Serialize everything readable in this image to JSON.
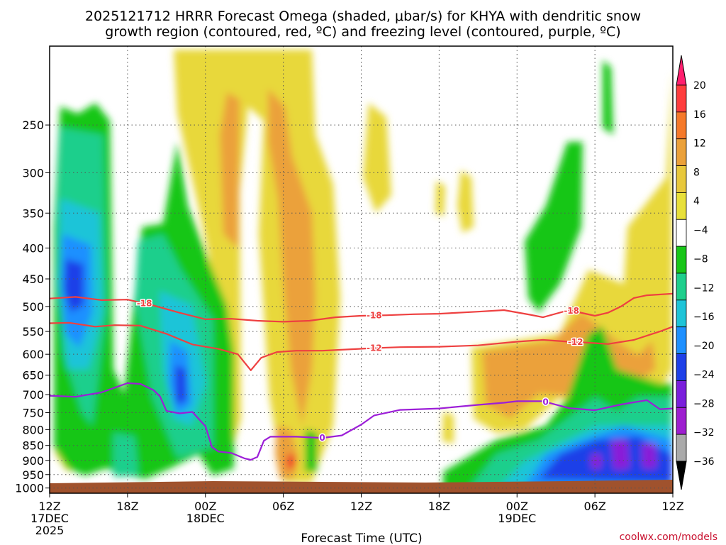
{
  "chart_data": {
    "type": "heatmap",
    "title_line1": "2025121712 HRRR Forecast Omega (shaded, μbar/s) for KHYA with dendritic snow",
    "title_line2": "growth region (contoured, red, ºC) and freezing level (contoured, purple, ºC)",
    "xlabel": "Forecast Time (UTC)",
    "credit": "coolwx.com/models",
    "x_range_hours": [
      0,
      48
    ],
    "y_range_mb": [
      1020,
      185
    ],
    "x_ticks": [
      {
        "hour": 0,
        "lines": [
          "12Z",
          "17DEC",
          "2025"
        ]
      },
      {
        "hour": 6,
        "lines": [
          "18Z"
        ]
      },
      {
        "hour": 12,
        "lines": [
          "00Z",
          "18DEC"
        ]
      },
      {
        "hour": 18,
        "lines": [
          "06Z"
        ]
      },
      {
        "hour": 24,
        "lines": [
          "12Z"
        ]
      },
      {
        "hour": 30,
        "lines": [
          "18Z"
        ]
      },
      {
        "hour": 36,
        "lines": [
          "00Z",
          "19DEC"
        ]
      },
      {
        "hour": 42,
        "lines": [
          "06Z"
        ]
      },
      {
        "hour": 48,
        "lines": [
          "12Z"
        ]
      }
    ],
    "y_ticks": [
      250,
      300,
      350,
      400,
      450,
      500,
      550,
      600,
      650,
      700,
      750,
      800,
      850,
      900,
      950,
      1000
    ],
    "colorbar": {
      "labels": [
        "20",
        "16",
        "12",
        "8",
        "4",
        "−4",
        "−8",
        "−12",
        "−16",
        "−20",
        "−24",
        "−28",
        "−32",
        "−36"
      ],
      "colors": [
        "#ff1f6e",
        "#ff3d3d",
        "#f5792a",
        "#eba13a",
        "#e8c83c",
        "#e8e03a",
        "#ffffff",
        "#18c618",
        "#1ecf8c",
        "#1ec4d8",
        "#1e90ff",
        "#1e40e8",
        "#7a1edc",
        "#9e1ed0",
        "#aaaaaa",
        "#000000"
      ]
    },
    "contours": [
      {
        "name": "-18",
        "color": "#ee4040",
        "points": [
          [
            0,
            485
          ],
          [
            2,
            482
          ],
          [
            4,
            488
          ],
          [
            6,
            487
          ],
          [
            8,
            498
          ],
          [
            10,
            512
          ],
          [
            12,
            525
          ],
          [
            14,
            524
          ],
          [
            16,
            528
          ],
          [
            18,
            530
          ],
          [
            20,
            528
          ],
          [
            22,
            521
          ],
          [
            24,
            518
          ],
          [
            26,
            517
          ],
          [
            28,
            515
          ],
          [
            30,
            514
          ],
          [
            33,
            510
          ],
          [
            35,
            507
          ],
          [
            37,
            516
          ],
          [
            38,
            521
          ],
          [
            40,
            507
          ],
          [
            42,
            518
          ],
          [
            43,
            512
          ],
          [
            44,
            500
          ],
          [
            45,
            484
          ],
          [
            46,
            479
          ],
          [
            48,
            476
          ]
        ],
        "labels": [
          {
            "hour": 7.3,
            "text": "-18"
          },
          {
            "hour": 25,
            "text": "-18"
          },
          {
            "hour": 40.2,
            "text": "-18"
          }
        ]
      },
      {
        "name": "-12",
        "color": "#ee4040",
        "points": [
          [
            0,
            533
          ],
          [
            1.5,
            532
          ],
          [
            3.5,
            540
          ],
          [
            5,
            537
          ],
          [
            7,
            538
          ],
          [
            9,
            555
          ],
          [
            11,
            578
          ],
          [
            13,
            588
          ],
          [
            14.5,
            600
          ],
          [
            15.5,
            638
          ],
          [
            16.3,
            608
          ],
          [
            17.5,
            595
          ],
          [
            19,
            592
          ],
          [
            21,
            592
          ],
          [
            23,
            589
          ],
          [
            25,
            586
          ],
          [
            27,
            584
          ],
          [
            30,
            583
          ],
          [
            33,
            580
          ],
          [
            36,
            572
          ],
          [
            38,
            568
          ],
          [
            40,
            572
          ],
          [
            42,
            575
          ],
          [
            43,
            577
          ],
          [
            45,
            568
          ],
          [
            47,
            550
          ],
          [
            48,
            540
          ]
        ],
        "labels": [
          {
            "hour": 25,
            "text": "-12"
          },
          {
            "hour": 40.5,
            "text": "-12"
          }
        ]
      },
      {
        "name": "0",
        "color": "#9c1ed8",
        "points": [
          [
            0,
            703
          ],
          [
            2,
            706
          ],
          [
            4,
            694
          ],
          [
            6,
            670
          ],
          [
            7,
            672
          ],
          [
            8,
            688
          ],
          [
            8.5,
            705
          ],
          [
            9,
            745
          ],
          [
            10,
            752
          ],
          [
            11,
            748
          ],
          [
            12,
            790
          ],
          [
            12.5,
            855
          ],
          [
            13,
            870
          ],
          [
            14,
            875
          ],
          [
            15,
            893
          ],
          [
            15.5,
            898
          ],
          [
            16,
            888
          ],
          [
            16.5,
            835
          ],
          [
            17,
            822
          ],
          [
            19,
            822
          ],
          [
            21,
            826
          ],
          [
            22.5,
            818
          ],
          [
            24,
            785
          ],
          [
            25,
            758
          ],
          [
            27,
            742
          ],
          [
            30,
            738
          ],
          [
            33,
            728
          ],
          [
            35,
            722
          ],
          [
            36,
            718
          ],
          [
            38,
            718
          ],
          [
            40,
            737
          ],
          [
            42,
            743
          ],
          [
            44,
            727
          ],
          [
            46,
            715
          ],
          [
            47,
            740
          ],
          [
            48,
            738
          ]
        ],
        "labels": [
          {
            "hour": 21.0,
            "text": "0"
          },
          {
            "hour": 38.2,
            "text": "0"
          }
        ]
      }
    ]
  }
}
